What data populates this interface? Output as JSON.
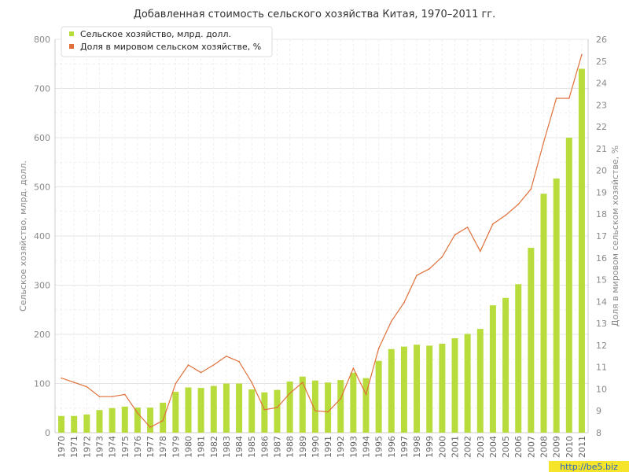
{
  "chart_data": {
    "type": "bar+line",
    "title": "Добавленная стоимость сельского хозяйства Китая, 1970–2011 гг.",
    "ylabel_left": "Сельское хозяйство, млрд. долл.",
    "ylabel_right": "Доля в мировом сельском хозяйстве, %",
    "ylim_left": [
      0,
      800
    ],
    "yticks_left": [
      0,
      100,
      200,
      300,
      400,
      500,
      600,
      700,
      800
    ],
    "ylim_right": [
      8,
      26
    ],
    "yticks_right": [
      8,
      9,
      10,
      11,
      12,
      13,
      14,
      15,
      16,
      17,
      18,
      19,
      20,
      21,
      22,
      23,
      24,
      25,
      26
    ],
    "grid": true,
    "legend_position": "top-left",
    "categories": [
      "1970",
      "1971",
      "1972",
      "1973",
      "1974",
      "1975",
      "1976",
      "1977",
      "1978",
      "1979",
      "1980",
      "1981",
      "1982",
      "1983",
      "1984",
      "1985",
      "1986",
      "1987",
      "1988",
      "1989",
      "1990",
      "1991",
      "1992",
      "1993",
      "1994",
      "1995",
      "1996",
      "1997",
      "1998",
      "1999",
      "2000",
      "2001",
      "2002",
      "2003",
      "2004",
      "2005",
      "2006",
      "2007",
      "2008",
      "2009",
      "2010",
      "2011"
    ],
    "series": [
      {
        "name": "Сельское хозяйство, млрд. долл.",
        "type": "bar",
        "axis": "left",
        "color": "#b7dc3c",
        "values": [
          34,
          34,
          37,
          46,
          50,
          53,
          51,
          51,
          61,
          83,
          92,
          91,
          95,
          100,
          100,
          88,
          82,
          87,
          104,
          114,
          106,
          102,
          107,
          122,
          111,
          146,
          170,
          175,
          179,
          177,
          181,
          192,
          201,
          211,
          259,
          274,
          302,
          376,
          486,
          517,
          600,
          740
        ]
      },
      {
        "name": "Доля в мировом сельском хозяйстве, %",
        "type": "line",
        "axis": "right",
        "color": "#e0703a",
        "values": [
          10.5,
          10.3,
          10.1,
          9.65,
          9.65,
          9.75,
          8.9,
          8.25,
          8.55,
          10.25,
          11.1,
          10.75,
          11.1,
          11.5,
          11.25,
          10.3,
          9.05,
          9.15,
          9.8,
          10.3,
          9.0,
          8.95,
          9.55,
          10.95,
          9.75,
          11.85,
          13.1,
          13.95,
          15.2,
          15.5,
          16.05,
          17.05,
          17.4,
          16.3,
          17.55,
          17.95,
          18.45,
          19.15,
          21.3,
          23.3,
          23.3,
          25.3
        ]
      }
    ]
  },
  "watermark": "http://be5.biz"
}
